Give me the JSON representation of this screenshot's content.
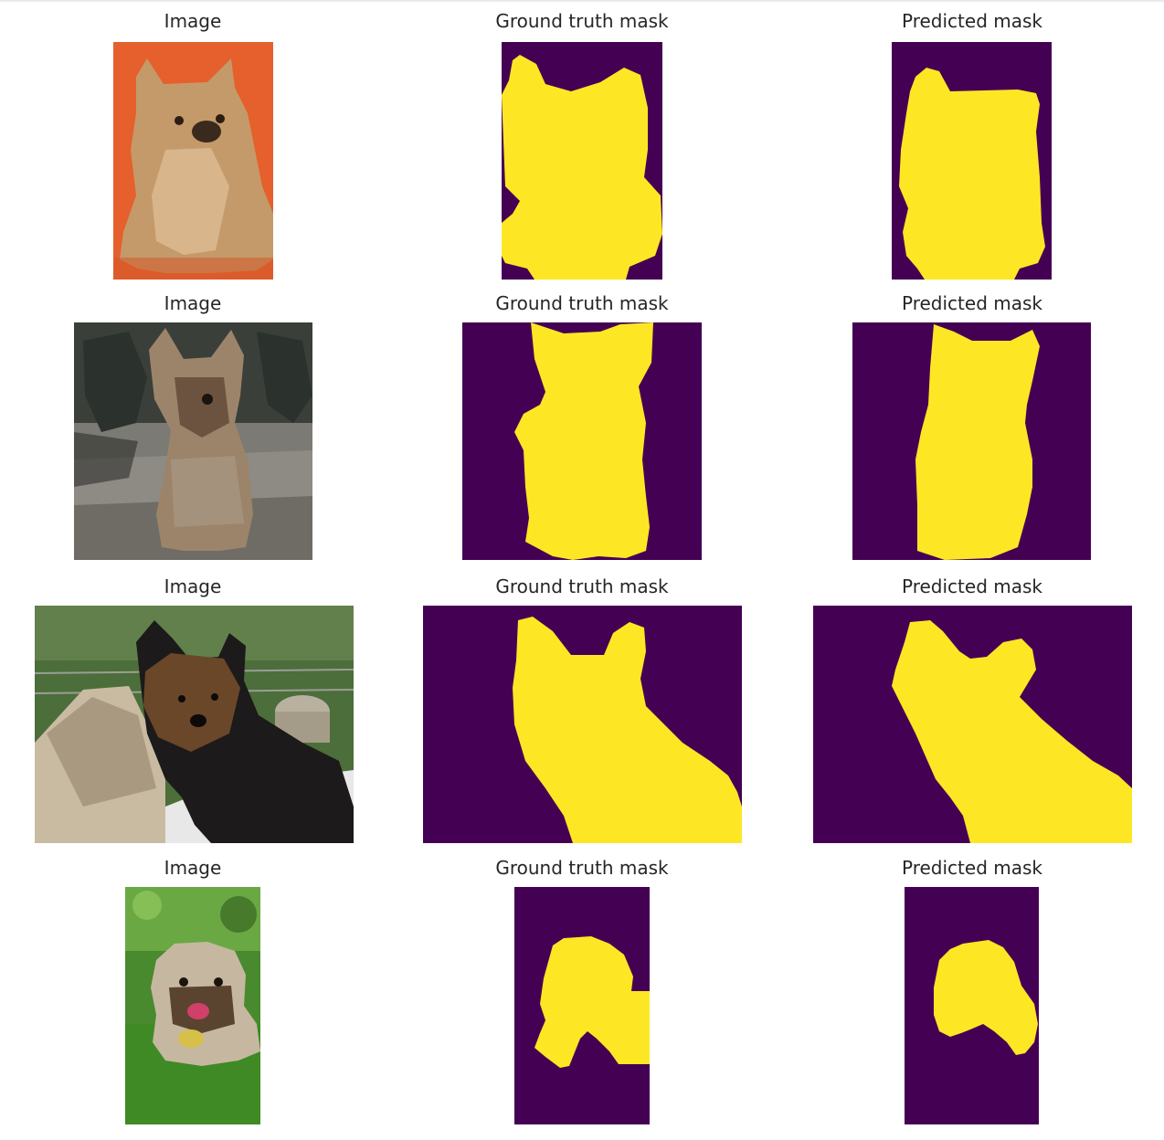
{
  "figure": {
    "rows": [
      {
        "image_title": "Image",
        "ground_truth_title": "Ground truth mask",
        "predicted_title": "Predicted mask"
      },
      {
        "image_title": "Image",
        "ground_truth_title": "Ground truth mask",
        "predicted_title": "Predicted mask"
      },
      {
        "image_title": "Image",
        "ground_truth_title": "Ground truth mask",
        "predicted_title": "Predicted mask"
      },
      {
        "image_title": "Image",
        "ground_truth_title": "Ground truth mask",
        "predicted_title": "Predicted mask"
      }
    ]
  },
  "colors": {
    "mask_background": "#440154",
    "mask_foreground": "#fde725",
    "title_text": "#262626"
  }
}
